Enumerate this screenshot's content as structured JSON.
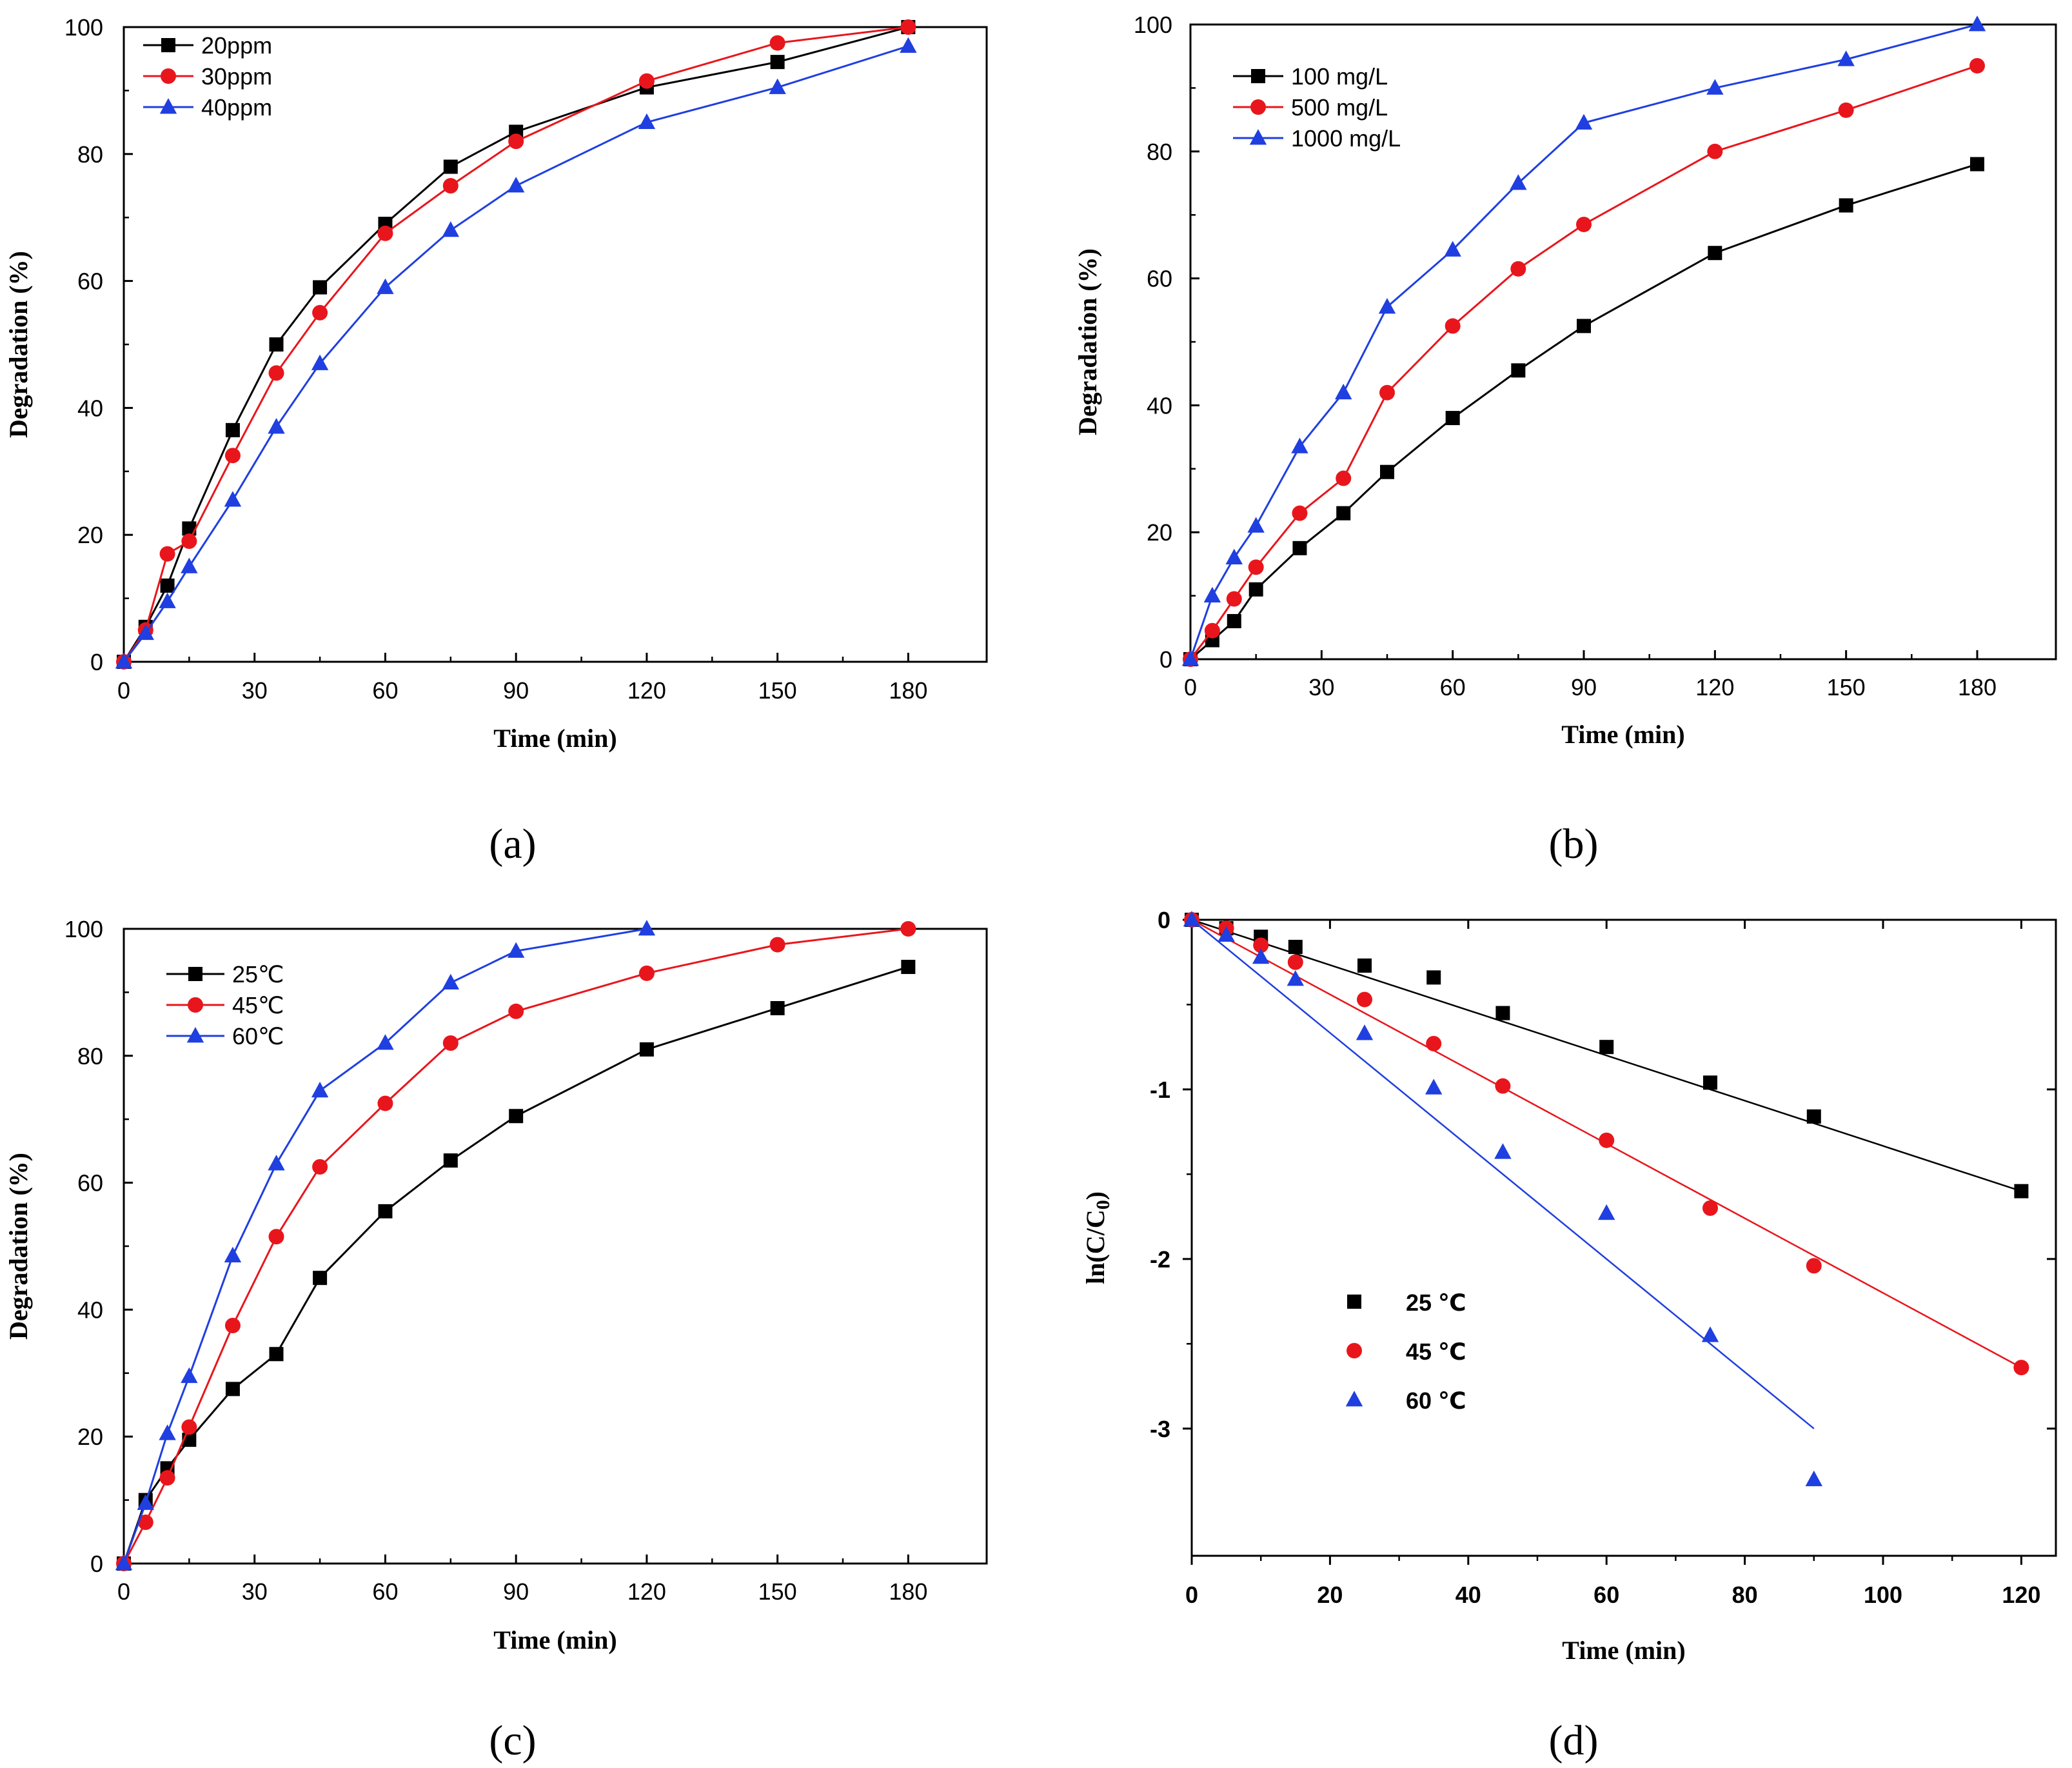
{
  "figure": {
    "panels": [
      {
        "id": "a",
        "label": "(a)"
      },
      {
        "id": "b",
        "label": "(b)"
      },
      {
        "id": "c",
        "label": "(c)"
      },
      {
        "id": "d",
        "label": "(d)"
      }
    ]
  },
  "chart_data": [
    {
      "id": "a",
      "type": "line",
      "title": "",
      "xlabel": "Time (min)",
      "ylabel": "Degradation (%)",
      "xlim": [
        0,
        198
      ],
      "ylim": [
        0,
        100
      ],
      "xticks": [
        0,
        30,
        60,
        90,
        120,
        150,
        180
      ],
      "yticks": [
        0,
        20,
        40,
        60,
        80,
        100
      ],
      "legend_position": "top-left",
      "series": [
        {
          "name": "20ppm",
          "color": "#000000",
          "marker": "square",
          "x": [
            0,
            5,
            10,
            15,
            25,
            35,
            45,
            60,
            75,
            90,
            120,
            150,
            180
          ],
          "y": [
            0,
            5.5,
            12,
            21,
            36.5,
            50,
            59,
            69,
            78,
            83.5,
            90.5,
            94.5,
            100
          ]
        },
        {
          "name": "30ppm",
          "color": "#e8161c",
          "marker": "circle",
          "x": [
            0,
            5,
            10,
            15,
            25,
            35,
            45,
            60,
            75,
            90,
            120,
            150,
            180
          ],
          "y": [
            0,
            5,
            17,
            19,
            32.5,
            45.5,
            55,
            67.5,
            75,
            82,
            91.5,
            97.5,
            100
          ]
        },
        {
          "name": "40ppm",
          "color": "#1f3fe0",
          "marker": "triangle",
          "x": [
            0,
            5,
            10,
            15,
            25,
            35,
            45,
            60,
            75,
            90,
            120,
            150,
            180
          ],
          "y": [
            0,
            4.5,
            9.5,
            15,
            25.5,
            37,
            47,
            59,
            68,
            75,
            85,
            90.5,
            97
          ]
        }
      ]
    },
    {
      "id": "b",
      "type": "line",
      "title": "",
      "xlabel": "Time (min)",
      "ylabel": "Degradation (%)",
      "xlim": [
        0,
        198
      ],
      "ylim": [
        0,
        100
      ],
      "xticks": [
        0,
        30,
        60,
        90,
        120,
        150,
        180
      ],
      "yticks": [
        0,
        20,
        40,
        60,
        80,
        100
      ],
      "legend_position": "top-left",
      "series": [
        {
          "name": "100 mg/L",
          "color": "#000000",
          "marker": "square",
          "x": [
            0,
            5,
            10,
            15,
            25,
            35,
            45,
            60,
            75,
            90,
            120,
            150,
            180
          ],
          "y": [
            0,
            3,
            6,
            11,
            17.5,
            23,
            29.5,
            38,
            45.5,
            52.5,
            64,
            71.5,
            78
          ]
        },
        {
          "name": "500 mg/L",
          "color": "#e8161c",
          "marker": "circle",
          "x": [
            0,
            5,
            10,
            15,
            25,
            35,
            45,
            60,
            75,
            90,
            120,
            150,
            180
          ],
          "y": [
            0,
            4.5,
            9.5,
            14.5,
            23,
            28.5,
            42,
            52.5,
            61.5,
            68.5,
            80,
            86.5,
            93.5
          ]
        },
        {
          "name": "1000 mg/L",
          "color": "#1f3fe0",
          "marker": "triangle",
          "x": [
            0,
            5,
            10,
            15,
            25,
            35,
            45,
            60,
            75,
            90,
            120,
            150,
            180
          ],
          "y": [
            0,
            10,
            16,
            21,
            33.5,
            42,
            55.5,
            64.5,
            75,
            84.5,
            90,
            94.5,
            100
          ]
        }
      ]
    },
    {
      "id": "c",
      "type": "line",
      "title": "",
      "xlabel": "Time (min)",
      "ylabel": "Degradation (%)",
      "xlim": [
        0,
        198
      ],
      "ylim": [
        0,
        100
      ],
      "xticks": [
        0,
        30,
        60,
        90,
        120,
        150,
        180
      ],
      "yticks": [
        0,
        20,
        40,
        60,
        80,
        100
      ],
      "legend_position": "top-left",
      "series": [
        {
          "name": "25℃",
          "color": "#000000",
          "marker": "square",
          "x": [
            0,
            5,
            10,
            15,
            25,
            35,
            45,
            60,
            75,
            90,
            120,
            150,
            180
          ],
          "y": [
            0,
            10,
            15,
            19.5,
            27.5,
            33,
            45,
            55.5,
            63.5,
            70.5,
            81,
            87.5,
            94
          ]
        },
        {
          "name": "45℃",
          "color": "#e8161c",
          "marker": "circle",
          "x": [
            0,
            5,
            10,
            15,
            25,
            35,
            45,
            60,
            75,
            90,
            120,
            150,
            180
          ],
          "y": [
            0,
            6.5,
            13.5,
            21.5,
            37.5,
            51.5,
            62.5,
            72.5,
            82,
            87,
            93,
            97.5,
            100
          ]
        },
        {
          "name": "60℃",
          "color": "#1f3fe0",
          "marker": "triangle",
          "x": [
            0,
            5,
            10,
            15,
            25,
            35,
            45,
            60,
            75,
            90,
            120
          ],
          "y": [
            0,
            9.5,
            20.5,
            29.5,
            48.5,
            63,
            74.5,
            82,
            91.5,
            96.5,
            100
          ]
        }
      ]
    },
    {
      "id": "d",
      "type": "scatter",
      "title": "",
      "xlabel": "Time (min)",
      "ylabel": "ln(C/C0)",
      "ylabel_main": "ln(C/C",
      "ylabel_sub": "0",
      "ylabel_end": ")",
      "xlim": [
        0,
        125
      ],
      "ylim": [
        -3.75,
        0
      ],
      "xticks": [
        0,
        20,
        40,
        60,
        80,
        100,
        120
      ],
      "yticks": [
        0,
        -1,
        -2,
        -3
      ],
      "ytick_labels": [
        "0",
        "-1",
        "-2",
        "-3"
      ],
      "legend_position": "center-left",
      "series": [
        {
          "name": "25 ℃",
          "color": "#000000",
          "marker": "square",
          "x": [
            0,
            5,
            10,
            15,
            25,
            35,
            45,
            60,
            75,
            90,
            120
          ],
          "y": [
            0,
            -0.05,
            -0.1,
            -0.16,
            -0.27,
            -0.34,
            -0.55,
            -0.75,
            -0.96,
            -1.16,
            -1.6
          ],
          "fit": {
            "x": [
              0,
              120
            ],
            "y": [
              0,
              -1.6
            ]
          }
        },
        {
          "name": "45 ℃",
          "color": "#e8161c",
          "marker": "circle",
          "x": [
            0,
            5,
            10,
            15,
            25,
            35,
            45,
            60,
            75,
            90,
            120
          ],
          "y": [
            0,
            -0.05,
            -0.15,
            -0.25,
            -0.47,
            -0.73,
            -0.98,
            -1.3,
            -1.7,
            -2.04,
            -2.64
          ],
          "fit": {
            "x": [
              0,
              120
            ],
            "y": [
              0,
              -2.64
            ]
          }
        },
        {
          "name": "60 ℃",
          "color": "#1f3fe0",
          "marker": "triangle",
          "x": [
            0,
            5,
            10,
            15,
            25,
            35,
            45,
            60,
            75,
            90
          ],
          "y": [
            0,
            -0.09,
            -0.22,
            -0.35,
            -0.67,
            -0.99,
            -1.37,
            -1.73,
            -2.45,
            -3.3
          ],
          "fit": {
            "x": [
              0,
              90
            ],
            "y": [
              0,
              -3.0
            ]
          }
        }
      ]
    }
  ]
}
